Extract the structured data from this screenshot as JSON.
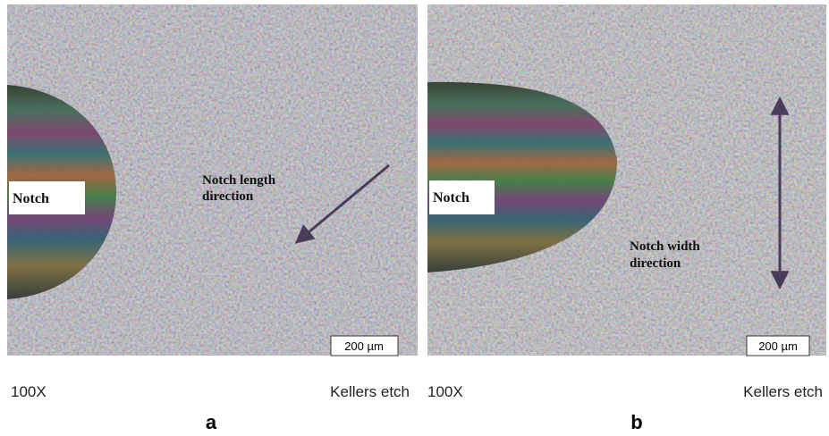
{
  "panels": [
    {
      "notch_label": "Notch",
      "direction_label": "Notch length direction",
      "scale_bar": "200 µm",
      "magnification": "100X",
      "etch": "Kellers etch",
      "letter": "a"
    },
    {
      "notch_label": "Notch",
      "direction_label": "Notch width direction",
      "scale_bar": "200 µm",
      "magnification": "100X",
      "etch": "Kellers etch",
      "letter": "b"
    }
  ]
}
